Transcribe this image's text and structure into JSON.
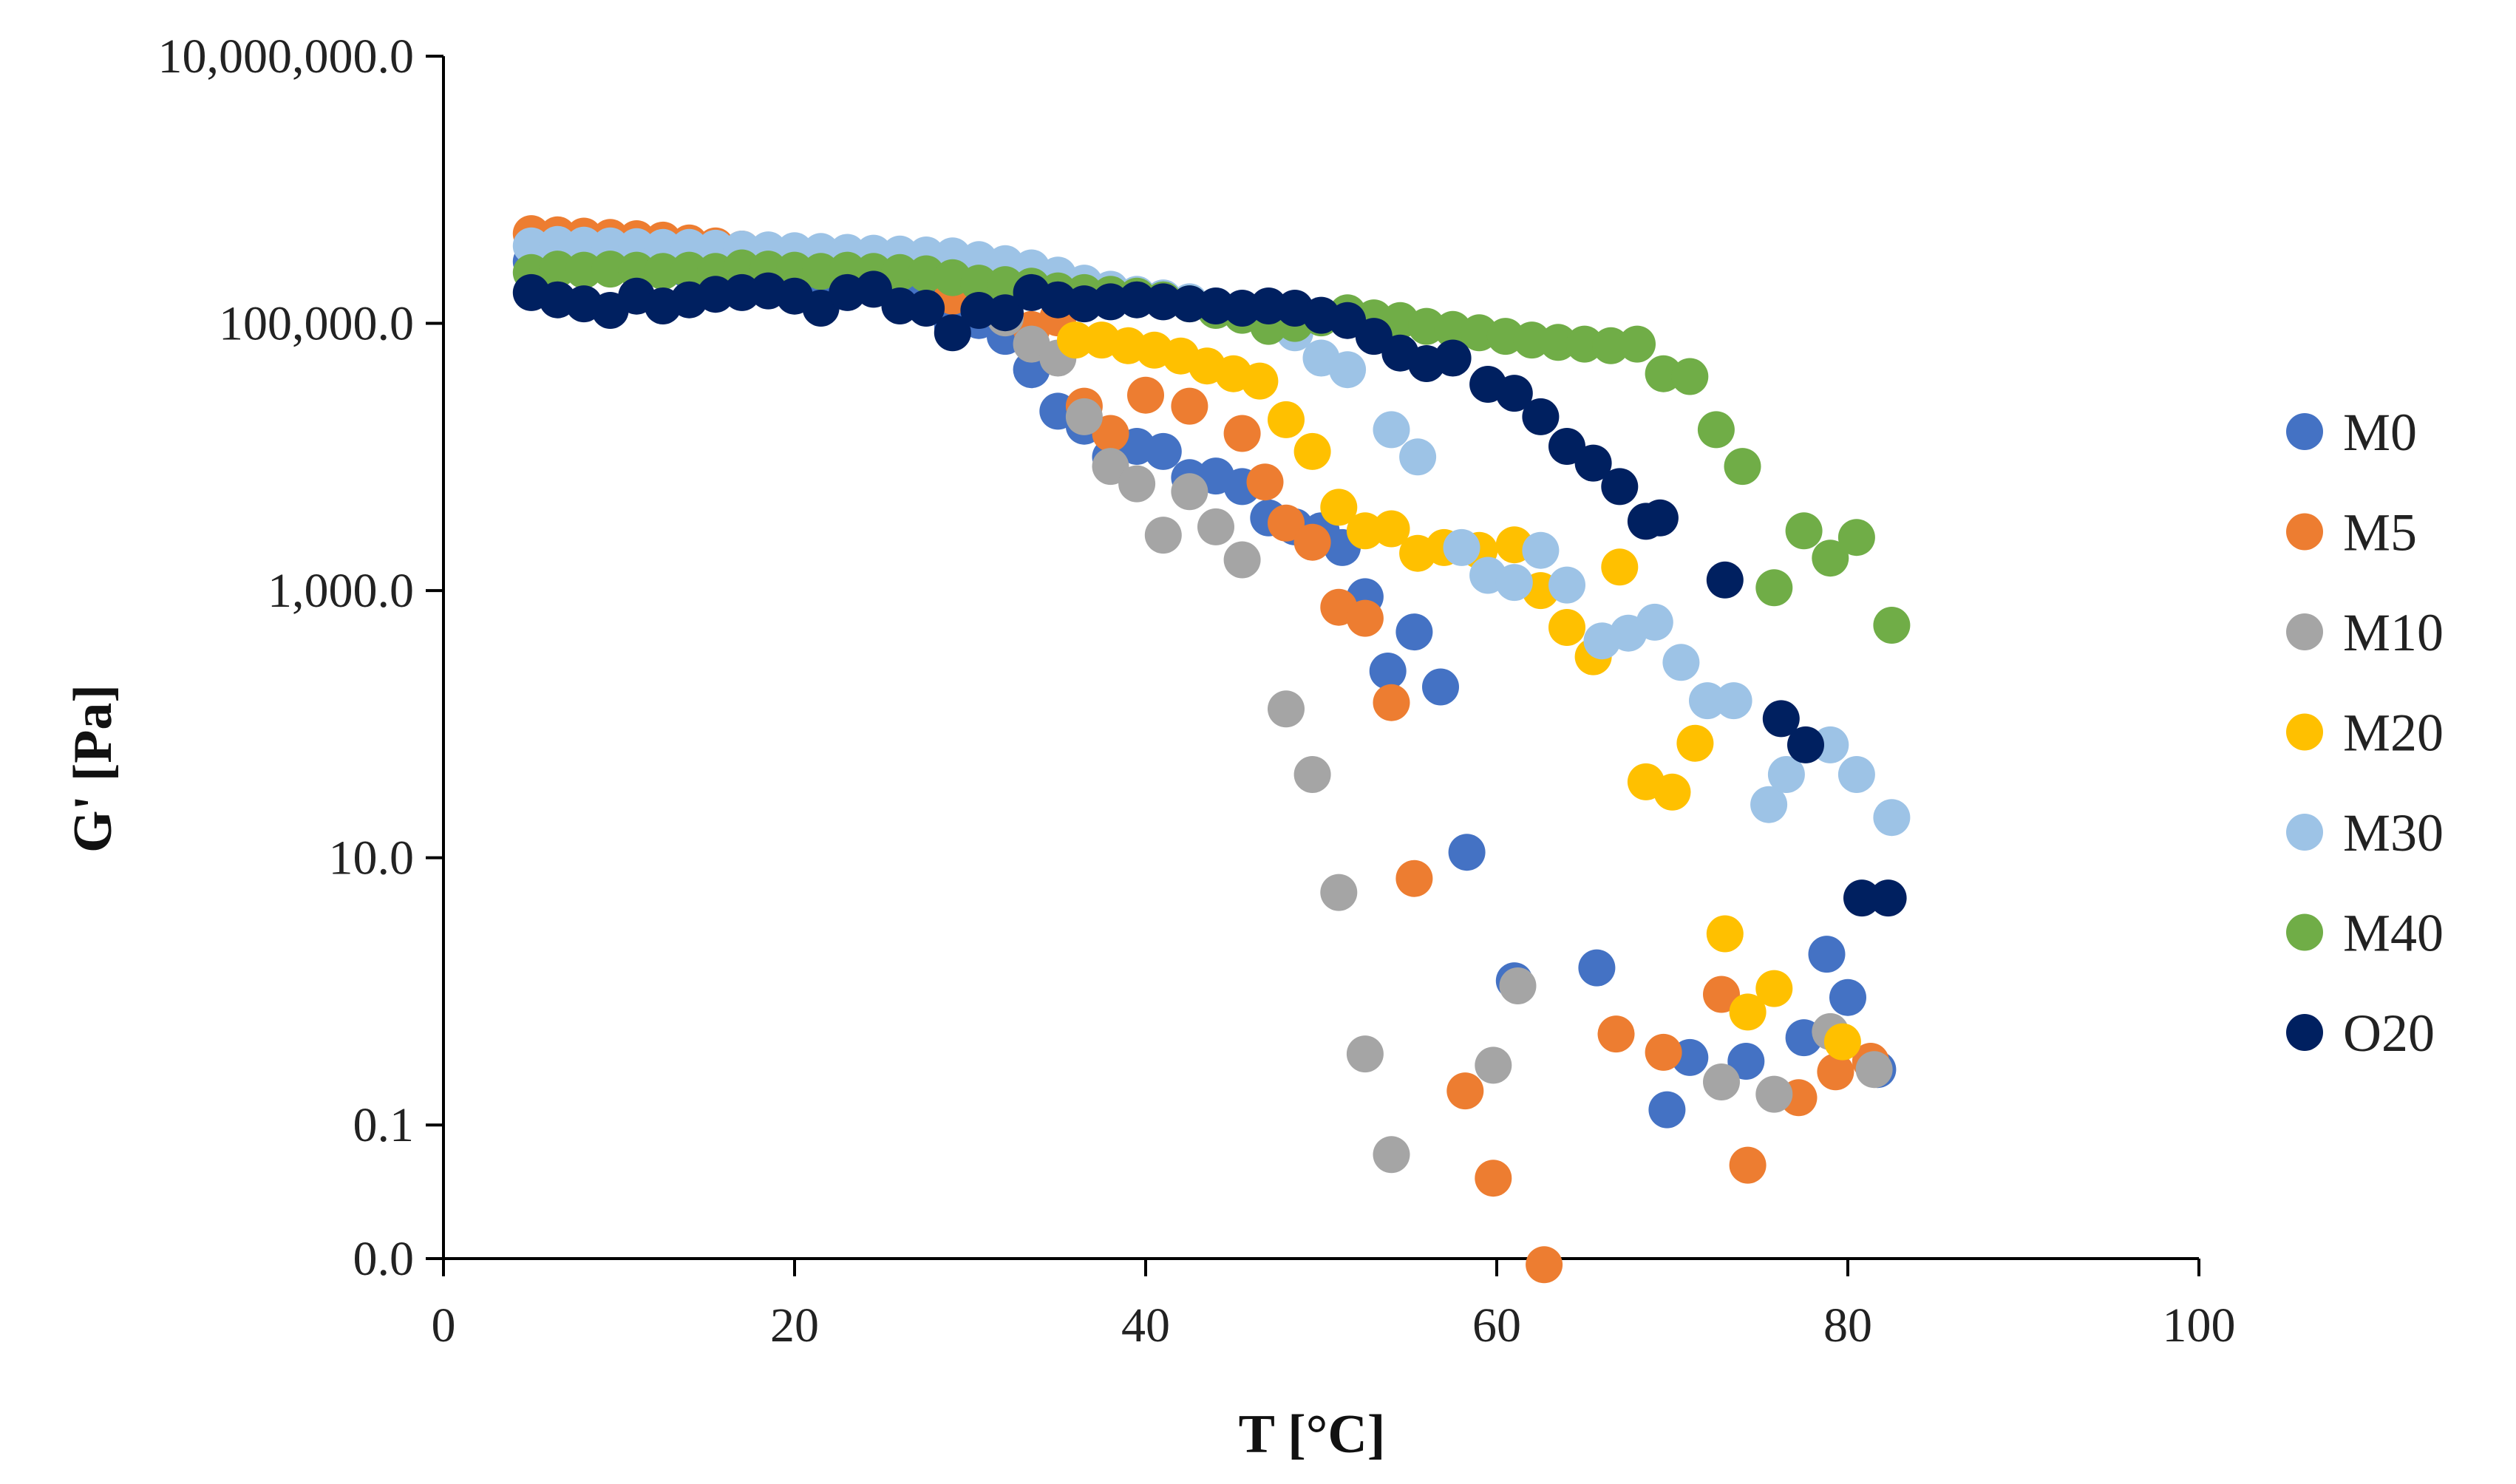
{
  "chart_data": {
    "type": "scatter",
    "title": "",
    "xlabel": "T [°C]",
    "ylabel": "G' [Pa]",
    "xlim": [
      0,
      100
    ],
    "ylim": [
      0.01,
      10000000
    ],
    "yscale": "log",
    "xticks": [
      {
        "value": 0,
        "label": "0"
      },
      {
        "value": 20,
        "label": "20"
      },
      {
        "value": 40,
        "label": "40"
      },
      {
        "value": 60,
        "label": "60"
      },
      {
        "value": 80,
        "label": "80"
      },
      {
        "value": 100,
        "label": "100"
      }
    ],
    "yticks": [
      {
        "value": 10000000,
        "label": "10,000,000.0"
      },
      {
        "value": 100000,
        "label": "100,000.0"
      },
      {
        "value": 1000,
        "label": "1,000.0"
      },
      {
        "value": 10,
        "label": "10.0"
      },
      {
        "value": 0.1,
        "label": "0.1"
      },
      {
        "value": 0.01,
        "label": "0.0"
      }
    ],
    "legend_position": "right",
    "series": [
      {
        "name": "M0",
        "color": "#4472C4",
        "points": [
          [
            5,
            290000
          ],
          [
            6.5,
            285000
          ],
          [
            8,
            280000
          ],
          [
            9.5,
            270000
          ],
          [
            11,
            260000
          ],
          [
            12.5,
            250000
          ],
          [
            14,
            245000
          ],
          [
            15.5,
            240000
          ],
          [
            17,
            235000
          ],
          [
            18.5,
            225000
          ],
          [
            20,
            215000
          ],
          [
            21.5,
            200000
          ],
          [
            23,
            195000
          ],
          [
            24.5,
            185000
          ],
          [
            26,
            180000
          ],
          [
            27.5,
            175000
          ],
          [
            29,
            95000
          ],
          [
            30.5,
            105000
          ],
          [
            32,
            80000
          ],
          [
            33.5,
            45000
          ],
          [
            35,
            22000
          ],
          [
            36.5,
            17000
          ],
          [
            38,
            10000
          ],
          [
            39.5,
            12000
          ],
          [
            41,
            11000
          ],
          [
            42.5,
            7000
          ],
          [
            44,
            7200
          ],
          [
            45.5,
            6000
          ],
          [
            47,
            3500
          ],
          [
            48.5,
            3000
          ],
          [
            50,
            2800
          ],
          [
            51.2,
            2100
          ],
          [
            52.5,
            900
          ],
          [
            53.8,
            250
          ],
          [
            55.3,
            490
          ],
          [
            56.8,
            190
          ],
          [
            58.3,
            11
          ],
          [
            61,
            1.2
          ],
          [
            65.7,
            1.5
          ],
          [
            69.7,
            0.13
          ],
          [
            71,
            0.32
          ],
          [
            74.2,
            0.3
          ],
          [
            77.5,
            0.45
          ],
          [
            78.8,
            1.9
          ],
          [
            80,
            0.9
          ],
          [
            81.7,
            0.26
          ]
        ]
      },
      {
        "name": "M5",
        "color": "#ED7D31",
        "points": [
          [
            5,
            470000
          ],
          [
            6.5,
            460000
          ],
          [
            8,
            450000
          ],
          [
            9.5,
            440000
          ],
          [
            11,
            430000
          ],
          [
            12.5,
            420000
          ],
          [
            14,
            400000
          ],
          [
            15.5,
            380000
          ],
          [
            17,
            360000
          ],
          [
            18.5,
            340000
          ],
          [
            20,
            320000
          ],
          [
            21.5,
            305000
          ],
          [
            23,
            295000
          ],
          [
            24.5,
            285000
          ],
          [
            26,
            300000
          ],
          [
            27.5,
            320000
          ],
          [
            29,
            160000
          ],
          [
            30.5,
            210000
          ],
          [
            32,
            115000
          ],
          [
            33.5,
            90000
          ],
          [
            35,
            110000
          ],
          [
            36.5,
            24000
          ],
          [
            38,
            15000
          ],
          [
            40,
            29000
          ],
          [
            42.5,
            24000
          ],
          [
            45.5,
            15000
          ],
          [
            46.8,
            6500
          ],
          [
            48,
            3200
          ],
          [
            49.5,
            2300
          ],
          [
            51,
            750
          ],
          [
            52.5,
            620
          ],
          [
            54,
            145
          ],
          [
            55.3,
            7
          ],
          [
            58.2,
            0.18
          ],
          [
            59.8,
            0.04
          ],
          [
            62.7,
            0.009
          ],
          [
            66.8,
            0.48
          ],
          [
            69.5,
            0.35
          ],
          [
            72.8,
            0.95
          ],
          [
            74.3,
            0.05
          ],
          [
            77.2,
            0.16
          ],
          [
            79.3,
            0.25
          ],
          [
            81.3,
            0.3
          ]
        ]
      },
      {
        "name": "M10",
        "color": "#A5A5A5",
        "points": [
          [
            32,
            110000
          ],
          [
            33.5,
            70000
          ],
          [
            35,
            55000
          ],
          [
            36.5,
            20000
          ],
          [
            38,
            8500
          ],
          [
            39.5,
            6300
          ],
          [
            41,
            2600
          ],
          [
            42.5,
            5500
          ],
          [
            44,
            3000
          ],
          [
            45.5,
            1700
          ],
          [
            48,
            130
          ],
          [
            49.5,
            42
          ],
          [
            51,
            5.5
          ],
          [
            52.5,
            0.34
          ],
          [
            54,
            0.06
          ],
          [
            59.8,
            0.28
          ],
          [
            61.2,
            1.1
          ],
          [
            72.8,
            0.21
          ],
          [
            75.8,
            0.17
          ],
          [
            79,
            0.5
          ],
          [
            81.5,
            0.26
          ]
        ]
      },
      {
        "name": "M20",
        "color": "#FFC000",
        "points": [
          [
            36,
            75000
          ],
          [
            37.5,
            75000
          ],
          [
            39,
            68000
          ],
          [
            40.5,
            63000
          ],
          [
            42,
            57000
          ],
          [
            43.5,
            48000
          ],
          [
            45,
            42000
          ],
          [
            46.5,
            37000
          ],
          [
            48,
            19000
          ],
          [
            49.5,
            11000
          ],
          [
            51,
            4200
          ],
          [
            52.5,
            2800
          ],
          [
            54,
            2900
          ],
          [
            55.5,
            1900
          ],
          [
            57,
            2100
          ],
          [
            59,
            2000
          ],
          [
            61,
            2200
          ],
          [
            62.5,
            1000
          ],
          [
            64,
            530
          ],
          [
            65.5,
            320
          ],
          [
            67,
            1500
          ],
          [
            68.5,
            37
          ],
          [
            70,
            31
          ],
          [
            71.3,
            72
          ],
          [
            73,
            2.7
          ],
          [
            74.3,
            0.7
          ],
          [
            75.8,
            1.05
          ],
          [
            79.7,
            0.42
          ]
        ]
      },
      {
        "name": "M30",
        "color": "#9DC3E6",
        "points": [
          [
            5,
            380000
          ],
          [
            6.5,
            390000
          ],
          [
            8,
            385000
          ],
          [
            9.5,
            380000
          ],
          [
            11,
            375000
          ],
          [
            12.5,
            370000
          ],
          [
            14,
            370000
          ],
          [
            15.5,
            365000
          ],
          [
            17,
            360000
          ],
          [
            18.5,
            355000
          ],
          [
            20,
            350000
          ],
          [
            21.5,
            345000
          ],
          [
            23,
            340000
          ],
          [
            24.5,
            335000
          ],
          [
            26,
            330000
          ],
          [
            27.5,
            325000
          ],
          [
            29,
            320000
          ],
          [
            30.5,
            300000
          ],
          [
            32,
            280000
          ],
          [
            33.5,
            260000
          ],
          [
            35,
            230000
          ],
          [
            36.5,
            200000
          ],
          [
            38,
            180000
          ],
          [
            39.5,
            165000
          ],
          [
            41,
            155000
          ],
          [
            42.5,
            145000
          ],
          [
            44,
            135000
          ],
          [
            45.5,
            120000
          ],
          [
            47,
            105000
          ],
          [
            48.5,
            85000
          ],
          [
            50,
            55000
          ],
          [
            51.5,
            45000
          ],
          [
            54,
            16000
          ],
          [
            55.5,
            10000
          ],
          [
            58,
            2100
          ],
          [
            59.5,
            1300
          ],
          [
            61,
            1150
          ],
          [
            62.5,
            2000
          ],
          [
            64,
            1100
          ],
          [
            66,
            420
          ],
          [
            67.5,
            480
          ],
          [
            69,
            580
          ],
          [
            70.5,
            290
          ],
          [
            72,
            150
          ],
          [
            73.5,
            150
          ],
          [
            75.5,
            25
          ],
          [
            76.5,
            42
          ],
          [
            79,
            70
          ],
          [
            80.5,
            42
          ],
          [
            82.5,
            20
          ]
        ]
      },
      {
        "name": "M40",
        "color": "#70AD47",
        "points": [
          [
            5,
            240000
          ],
          [
            6.5,
            255000
          ],
          [
            8,
            250000
          ],
          [
            9.5,
            255000
          ],
          [
            11,
            250000
          ],
          [
            12.5,
            245000
          ],
          [
            14,
            250000
          ],
          [
            15.5,
            245000
          ],
          [
            17,
            260000
          ],
          [
            18.5,
            255000
          ],
          [
            20,
            250000
          ],
          [
            21.5,
            245000
          ],
          [
            23,
            250000
          ],
          [
            24.5,
            245000
          ],
          [
            26,
            240000
          ],
          [
            27.5,
            235000
          ],
          [
            29,
            220000
          ],
          [
            30.5,
            200000
          ],
          [
            32,
            195000
          ],
          [
            33.5,
            190000
          ],
          [
            35,
            175000
          ],
          [
            36.5,
            170000
          ],
          [
            38,
            165000
          ],
          [
            39.5,
            160000
          ],
          [
            41,
            150000
          ],
          [
            42.5,
            140000
          ],
          [
            44,
            125000
          ],
          [
            45.5,
            115000
          ],
          [
            47,
            95000
          ],
          [
            48.5,
            100000
          ],
          [
            50,
            110000
          ],
          [
            51.5,
            120000
          ],
          [
            53,
            110000
          ],
          [
            54.5,
            105000
          ],
          [
            56,
            95000
          ],
          [
            57.5,
            90000
          ],
          [
            59,
            85000
          ],
          [
            60.5,
            80000
          ],
          [
            62,
            75000
          ],
          [
            63.5,
            72000
          ],
          [
            65,
            70000
          ],
          [
            66.5,
            68000
          ],
          [
            68,
            70000
          ],
          [
            69.5,
            42000
          ],
          [
            71,
            40000
          ],
          [
            72.5,
            16000
          ],
          [
            74,
            8500
          ],
          [
            75.8,
            1050
          ],
          [
            77.5,
            2800
          ],
          [
            79,
            1750
          ],
          [
            80.5,
            2500
          ],
          [
            82.5,
            550
          ]
        ]
      },
      {
        "name": "O20",
        "color": "#002060",
        "points": [
          [
            5,
            170000
          ],
          [
            6.5,
            150000
          ],
          [
            8,
            140000
          ],
          [
            9.5,
            125000
          ],
          [
            11,
            160000
          ],
          [
            12.5,
            135000
          ],
          [
            14,
            150000
          ],
          [
            15.5,
            165000
          ],
          [
            17,
            170000
          ],
          [
            18.5,
            175000
          ],
          [
            20,
            160000
          ],
          [
            21.5,
            130000
          ],
          [
            23,
            170000
          ],
          [
            24.5,
            180000
          ],
          [
            26,
            135000
          ],
          [
            27.5,
            130000
          ],
          [
            29,
            85000
          ],
          [
            30.5,
            125000
          ],
          [
            32,
            120000
          ],
          [
            33.5,
            170000
          ],
          [
            35,
            150000
          ],
          [
            36.5,
            140000
          ],
          [
            38,
            145000
          ],
          [
            39.5,
            150000
          ],
          [
            41,
            145000
          ],
          [
            42.5,
            140000
          ],
          [
            44,
            135000
          ],
          [
            45.5,
            130000
          ],
          [
            47,
            135000
          ],
          [
            48.5,
            130000
          ],
          [
            50,
            115000
          ],
          [
            51.5,
            105000
          ],
          [
            53,
            80000
          ],
          [
            54.5,
            60000
          ],
          [
            56,
            50000
          ],
          [
            57.5,
            55000
          ],
          [
            59.5,
            35000
          ],
          [
            61,
            30000
          ],
          [
            62.5,
            20000
          ],
          [
            64,
            12000
          ],
          [
            65.5,
            9000
          ],
          [
            67,
            6000
          ],
          [
            68.5,
            3300
          ],
          [
            69.3,
            3500
          ],
          [
            73,
            1200
          ],
          [
            76.2,
            110
          ],
          [
            77.6,
            70
          ],
          [
            80.8,
            5
          ],
          [
            82.3,
            5
          ]
        ]
      }
    ]
  }
}
